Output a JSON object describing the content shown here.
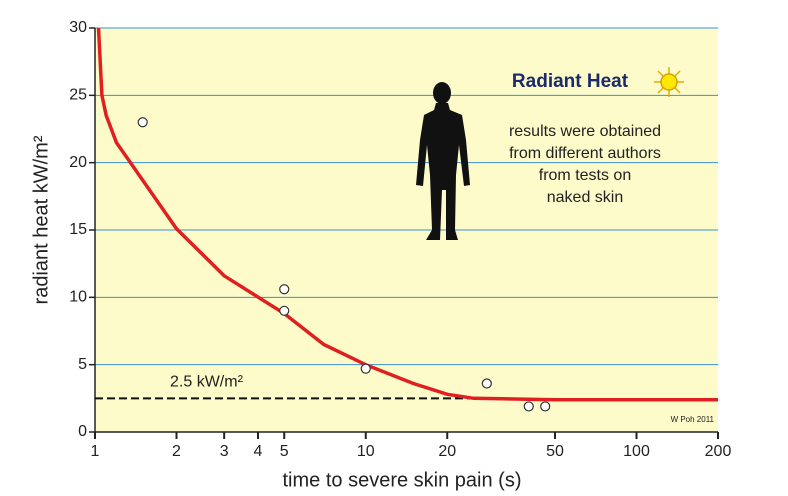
{
  "chart_data": {
    "type": "scatter",
    "x_label": "time to severe skin pain (s)",
    "y_label": "radiant heat kW/m²",
    "x": [
      1.5,
      5,
      5,
      10,
      28,
      40,
      46
    ],
    "values": [
      23,
      10.6,
      9.0,
      4.7,
      3.6,
      1.9,
      1.9
    ],
    "curve": {
      "color": "#e02020",
      "x": [
        1.03,
        1.06,
        1.1,
        1.2,
        1.5,
        2,
        3,
        5,
        7,
        10,
        15,
        20,
        25,
        50,
        100,
        200
      ],
      "values": [
        30,
        25,
        23.5,
        21.5,
        18.7,
        15.1,
        11.6,
        8.8,
        6.5,
        5,
        3.6,
        2.8,
        2.5,
        2.4,
        2.4,
        2.4
      ]
    },
    "reference_line": {
      "value": 2.5,
      "label": "2.5 kW/m²"
    },
    "xlim": [
      1,
      200
    ],
    "xscale": "log",
    "xticks": [
      1,
      2,
      3,
      4,
      5,
      10,
      20,
      50,
      100,
      200
    ],
    "ylim": [
      0,
      30
    ],
    "yticks": [
      0,
      5,
      10,
      15,
      20,
      25,
      30
    ],
    "grid": true,
    "grid_color": "#3a8fd0",
    "background": "#fdfbc9",
    "title": "Radiant Heat",
    "notes": [
      "results were obtained",
      "from different authors",
      "from tests on",
      "naked skin"
    ],
    "credit": "W Poh 2011"
  }
}
